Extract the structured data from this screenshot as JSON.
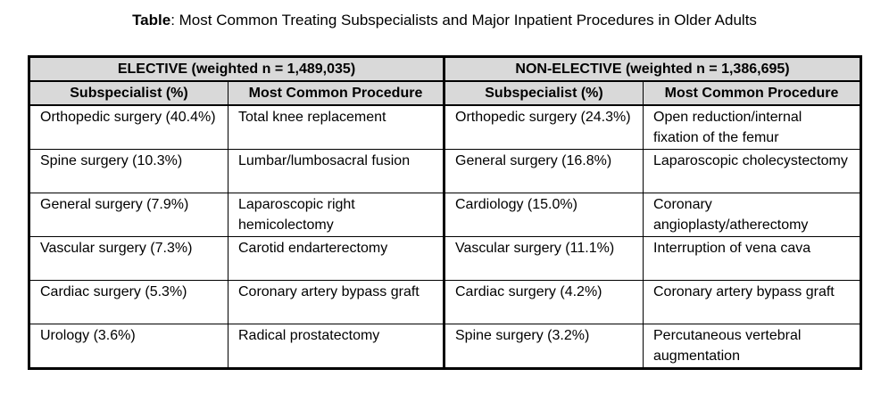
{
  "caption": {
    "label": "Table",
    "text": ": Most Common Treating Subspecialists and Major Inpatient Procedures in Older Adults"
  },
  "groups": [
    {
      "label": "ELECTIVE (weighted n = 1,489,035)"
    },
    {
      "label": "NON-ELECTIVE (weighted n = 1,386,695)"
    }
  ],
  "columns": [
    "Subspecialist (%)",
    "Most Common Procedure",
    "Subspecialist (%)",
    "Most Common Procedure"
  ],
  "rows": [
    [
      "Orthopedic surgery (40.4%)",
      "Total knee replacement",
      "Orthopedic surgery (24.3%)",
      "Open reduction/internal fixation of the femur"
    ],
    [
      "Spine surgery (10.3%)",
      "Lumbar/lumbosacral fusion",
      "General surgery (16.8%)",
      "Laparoscopic cholecystectomy"
    ],
    [
      "General surgery (7.9%)",
      "Laparoscopic right hemicolectomy",
      "Cardiology (15.0%)",
      "Coronary angioplasty/atherectomy"
    ],
    [
      "Vascular surgery (7.3%)",
      "Carotid endarterectomy",
      "Vascular surgery (11.1%)",
      "Interruption of vena cava"
    ],
    [
      "Cardiac surgery (5.3%)",
      "Coronary artery bypass graft",
      "Cardiac surgery (4.2%)",
      "Coronary artery bypass graft"
    ],
    [
      "Urology (3.6%)",
      "Radical prostatectomy",
      "Spine surgery (3.2%)",
      "Percutaneous vertebral augmentation"
    ]
  ]
}
